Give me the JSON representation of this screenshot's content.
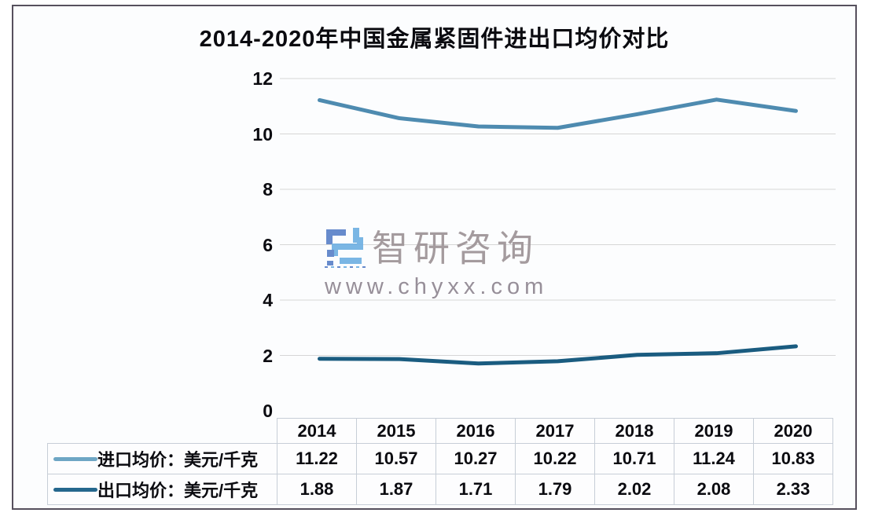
{
  "chart_data": {
    "type": "line",
    "title": "2014-2020年中国金属紧固件进出口均价对比",
    "categories": [
      "2014",
      "2015",
      "2016",
      "2017",
      "2018",
      "2019",
      "2020"
    ],
    "series": [
      {
        "name": "进口均价：美元/千克",
        "color": "#4e8bb0",
        "legend_color": "#6ea6c4",
        "values": [
          11.22,
          10.57,
          10.27,
          10.22,
          10.71,
          11.24,
          10.83
        ]
      },
      {
        "name": "出口均价：美元/千克",
        "color": "#1a5c80",
        "legend_color": "#25678d",
        "values": [
          1.88,
          1.87,
          1.71,
          1.79,
          2.02,
          2.08,
          2.33
        ]
      }
    ],
    "xlabel": "",
    "ylabel": "",
    "ylim": [
      0,
      12
    ],
    "yticks": [
      0,
      2,
      4,
      6,
      8,
      10,
      12
    ],
    "grid": true,
    "legend_position": "table rows, left of data grid"
  },
  "watermark": {
    "brand": "智研咨询",
    "url": "www.chyxx.com",
    "logo_dark": "#5b82c8",
    "logo_light": "#6fb0e2",
    "text_color": "#9d9396"
  },
  "colors": {
    "frame_border": "#56505d",
    "grid_line": "#d6d6d6",
    "table_border": "#c7ced7",
    "text": "#0b0b10",
    "background": "#fcfdfe"
  }
}
